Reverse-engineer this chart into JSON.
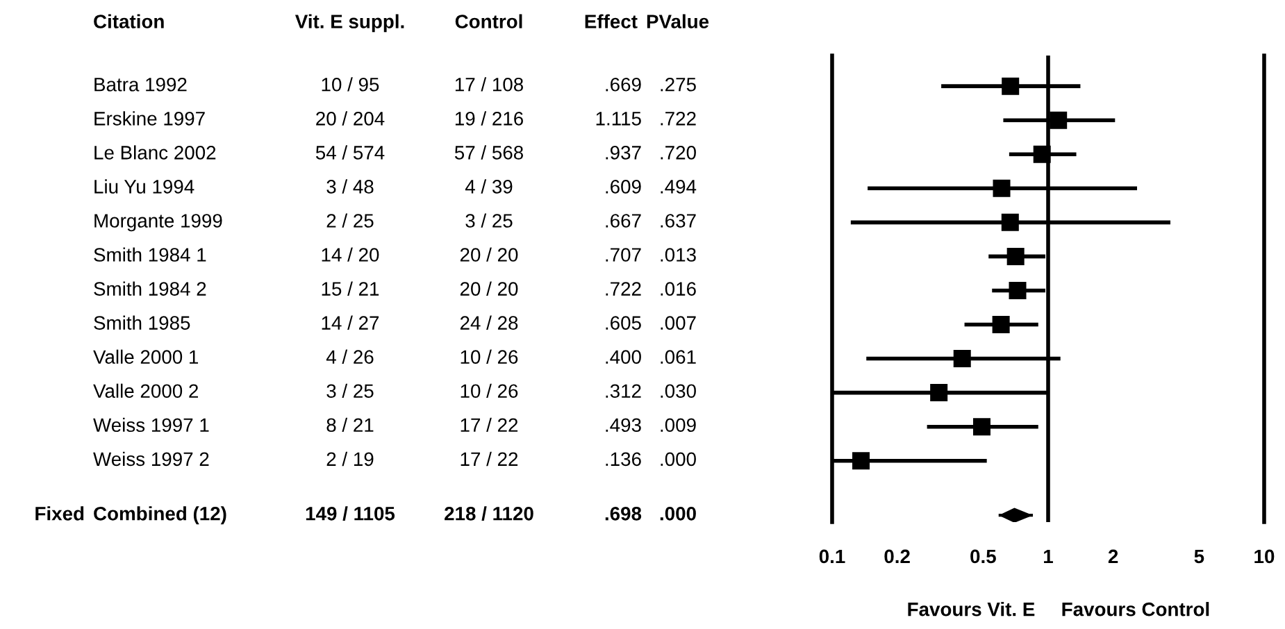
{
  "chart_data": [
    {
      "type": "other",
      "ylabel": "Citation",
      "categories": [
        "Vit. E suppl.",
        "Control",
        "Effect",
        "PValue"
      ],
      "y_categories": [
        "Batra 1992",
        "Erskine 1997",
        "Le Blanc 2002",
        "Liu Yu 1994",
        "Morgante 1999",
        "Smith 1984 1",
        "Smith 1984 2",
        "Smith 1985",
        "Valle 2000 1",
        "Valle 2000 2",
        "Weiss 1997 1",
        "Weiss 1997 2",
        "Combined (12)"
      ],
      "y2_categories": [
        null,
        null,
        null,
        null,
        null,
        null,
        null,
        null,
        null,
        null,
        null,
        null,
        "Fixed"
      ],
      "cell_labels": [
        [
          "10 / 95",
          "17 / 108",
          ".669",
          ".275"
        ],
        [
          "20 / 204",
          "19 / 216",
          "1.115",
          ".722"
        ],
        [
          "54 / 574",
          "57 / 568",
          ".937",
          ".720"
        ],
        [
          "3 / 48",
          "4 / 39",
          ".609",
          ".494"
        ],
        [
          "2 / 25",
          "3 / 25",
          ".667",
          ".637"
        ],
        [
          "14 / 20",
          "20 / 20",
          ".707",
          ".013"
        ],
        [
          "15 / 21",
          "20 / 20",
          ".722",
          ".016"
        ],
        [
          "14 / 27",
          "24 / 28",
          ".605",
          ".007"
        ],
        [
          "4 / 26",
          "10 / 26",
          ".400",
          ".061"
        ],
        [
          "3 / 25",
          "10 / 26",
          ".312",
          ".030"
        ],
        [
          "8 / 21",
          "17 / 22",
          ".493",
          ".009"
        ],
        [
          "2 / 19",
          "17 / 22",
          ".136",
          ".000"
        ],
        [
          "149 / 1105",
          "218 / 1120",
          ".698",
          ".000"
        ]
      ]
    },
    {
      "type": "scatter",
      "orientation": "horizontal",
      "log": "x",
      "grid": false,
      "tick_labels": "x",
      "categories": [
        null,
        null,
        null,
        null,
        null,
        null,
        null,
        null,
        null,
        null,
        null,
        null,
        null
      ],
      "xlim": [
        0.1,
        10
      ],
      "xticks": [
        0.1,
        0.2,
        0.5,
        1,
        2,
        5,
        10
      ],
      "ref_lines": [
        {
          "axis": "x",
          "value": 1,
          "color": "#000000"
        }
      ],
      "annotations": [
        "Favours Vit. E",
        "Favours Control"
      ],
      "series": [
        {
          "color": "#000000",
          "marker": "square",
          "values": [
            0.669,
            1.115,
            0.937,
            0.609,
            0.667,
            0.707,
            0.722,
            0.605,
            0.4,
            0.312,
            0.493,
            0.136,
            null
          ],
          "errors": [
            [
              0.32,
              1.41
            ],
            [
              0.62,
              2.04
            ],
            [
              0.66,
              1.35
            ],
            [
              0.146,
              2.58
            ],
            [
              0.122,
              3.68
            ],
            [
              0.53,
              0.97
            ],
            [
              0.55,
              0.97
            ],
            [
              0.41,
              0.9
            ],
            [
              0.144,
              1.14
            ],
            [
              0.1,
              1.0
            ],
            [
              0.275,
              0.9
            ],
            [
              0.1,
              0.52
            ],
            null
          ]
        },
        {
          "color": "#000000",
          "marker": "diamond",
          "values": [
            null,
            null,
            null,
            null,
            null,
            null,
            null,
            null,
            null,
            null,
            null,
            null,
            0.698
          ],
          "errors": [
            null,
            null,
            null,
            null,
            null,
            null,
            null,
            null,
            null,
            null,
            null,
            null,
            [
              0.59,
              0.85
            ]
          ]
        }
      ]
    }
  ]
}
